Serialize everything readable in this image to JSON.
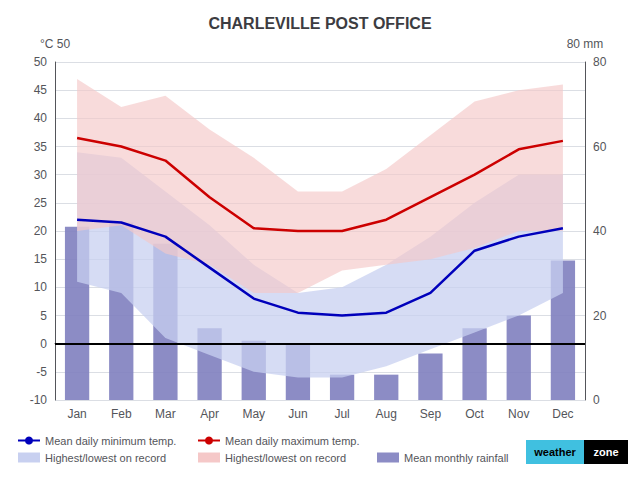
{
  "chart_data": {
    "type": "line",
    "title": "CHARLEVILLE POST OFFICE",
    "categories": [
      "Jan",
      "Feb",
      "Mar",
      "Apr",
      "May",
      "Jun",
      "Jul",
      "Aug",
      "Sep",
      "Oct",
      "Nov",
      "Dec"
    ],
    "ylabel": "°C 50",
    "y2label": "80 mm",
    "ylim": [
      -10,
      50
    ],
    "yticks": [
      -10,
      -5,
      0,
      5,
      10,
      15,
      20,
      25,
      30,
      35,
      40,
      45,
      50
    ],
    "y2lim": [
      0,
      80
    ],
    "y2ticks": [
      0,
      20,
      40,
      60,
      80
    ],
    "grid": true,
    "legend": "bottom",
    "series": [
      {
        "name": "Mean monthly rainfall",
        "type": "bar",
        "axis": "y2",
        "color": "#8080bf",
        "values": [
          41,
          42,
          37,
          17,
          14,
          13,
          6,
          6,
          11,
          17,
          20,
          33
        ]
      },
      {
        "name": "Highest/lowest on record",
        "type": "band",
        "color": "#c8d0f0",
        "low": [
          11,
          9,
          1,
          -2,
          -5,
          -6,
          -6,
          -4,
          -1,
          2,
          5,
          9
        ],
        "values": [
          34,
          33,
          27,
          21,
          14,
          9,
          10,
          14,
          19,
          25,
          30,
          30
        ]
      },
      {
        "name": "Highest/lowest on record",
        "type": "band",
        "color": "#f5c8c8",
        "low": [
          20,
          21,
          16,
          14,
          9,
          9,
          13,
          14,
          15,
          17,
          20,
          20
        ],
        "values": [
          47,
          42,
          44,
          38,
          33,
          27,
          27,
          31,
          37,
          43,
          45,
          46
        ]
      },
      {
        "name": "Mean daily minimum temp.",
        "type": "line",
        "color": "#0000bb",
        "values": [
          22,
          21.5,
          19,
          13.5,
          8,
          5.5,
          5,
          5.5,
          9,
          16.5,
          19,
          20.5
        ]
      },
      {
        "name": "Mean daily maximum temp.",
        "type": "line",
        "color": "#cc0000",
        "values": [
          36.5,
          35,
          32.5,
          26,
          20.5,
          20,
          20,
          22,
          26,
          30,
          34.5,
          36
        ]
      }
    ],
    "reference_line": {
      "y": 0,
      "color": "#000000"
    },
    "annotations": [
      {
        "text": "weather",
        "color": "#40c0e0"
      },
      {
        "text": "zone",
        "color": "#000000"
      }
    ]
  }
}
